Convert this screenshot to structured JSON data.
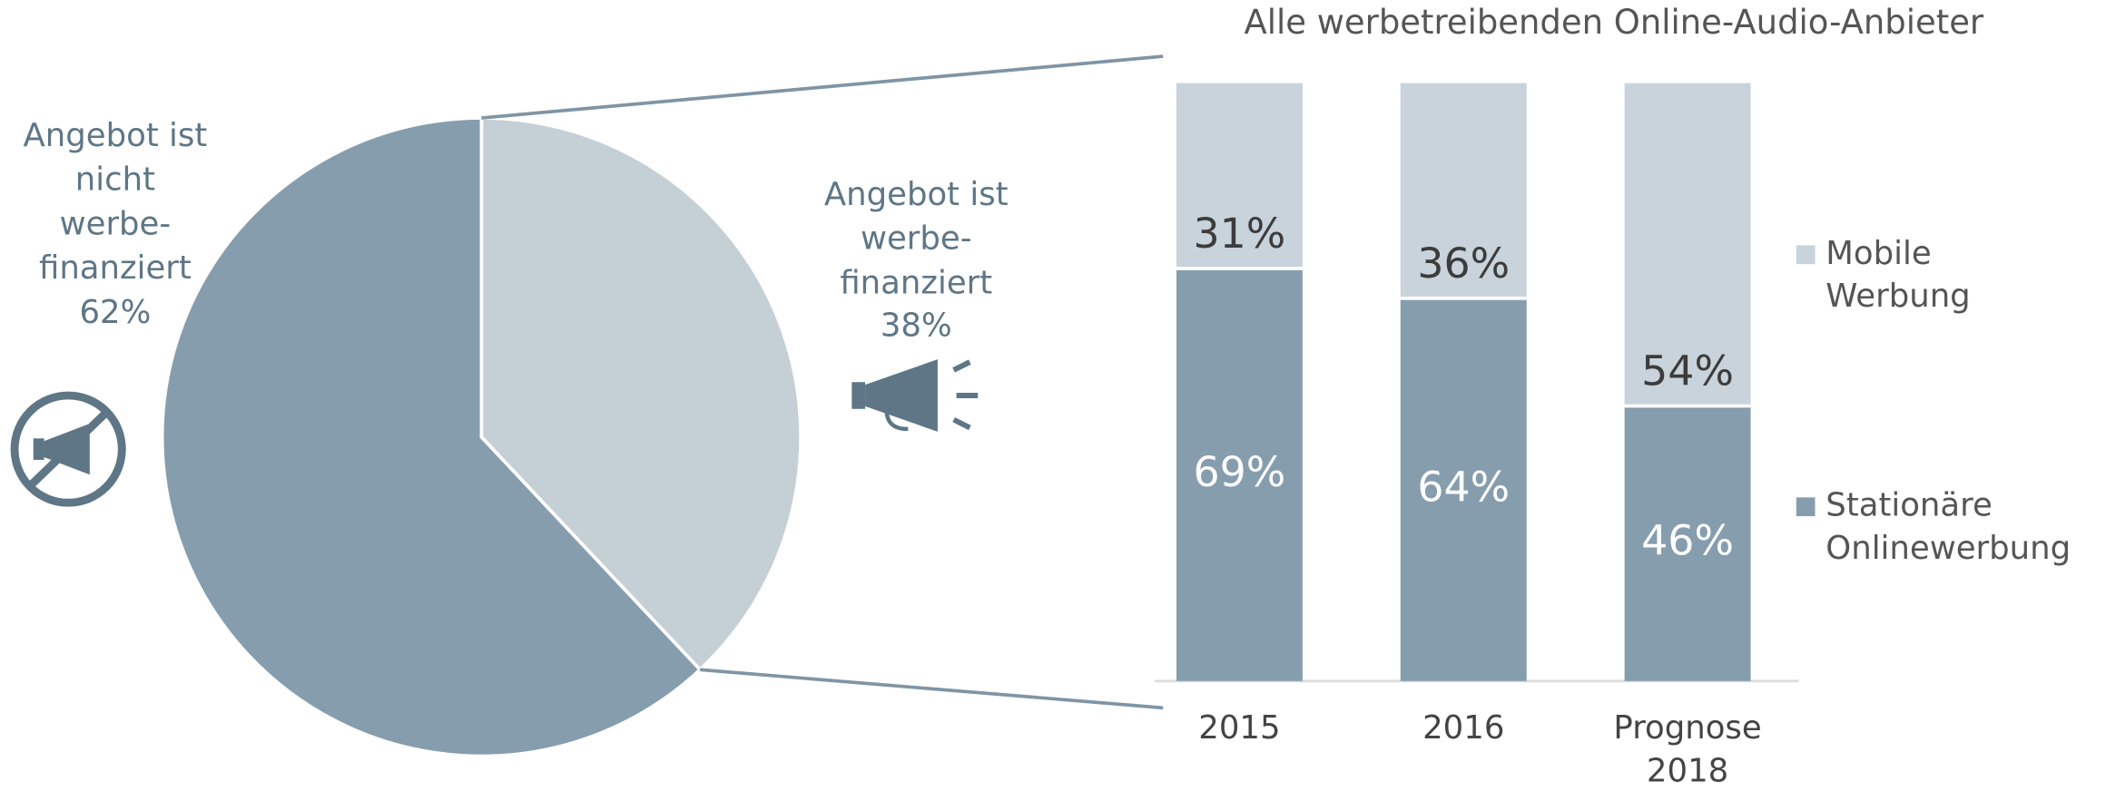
{
  "chart_data": [
    {
      "type": "pie",
      "categories": [
        "Angebot ist\nwerbe-\nfinanziert",
        "Angebot ist\nnicht\nwerbe-\nfinanziert"
      ],
      "values": [
        38,
        62
      ],
      "value_labels": [
        "38%",
        "62%"
      ],
      "colors": [
        "#c5cfd6",
        "#869dae"
      ]
    },
    {
      "type": "stacked_bar",
      "title": "Alle werbetreibenden Online-Audio-Anbieter",
      "categories": [
        "2015",
        "2016",
        "Prognose\n2018"
      ],
      "series": [
        {
          "name": "Stationäre\nOnlinewerbung",
          "color": "#869dae",
          "values": [
            69,
            64,
            46
          ],
          "value_labels": [
            "69%",
            "64%",
            "46%"
          ]
        },
        {
          "name": "Mobile\nWerbung",
          "color": "#c8d3db",
          "values": [
            31,
            36,
            54
          ],
          "value_labels": [
            "31%",
            "36%",
            "54%"
          ]
        }
      ],
      "ylim": [
        0,
        100
      ],
      "legend": "right"
    }
  ]
}
